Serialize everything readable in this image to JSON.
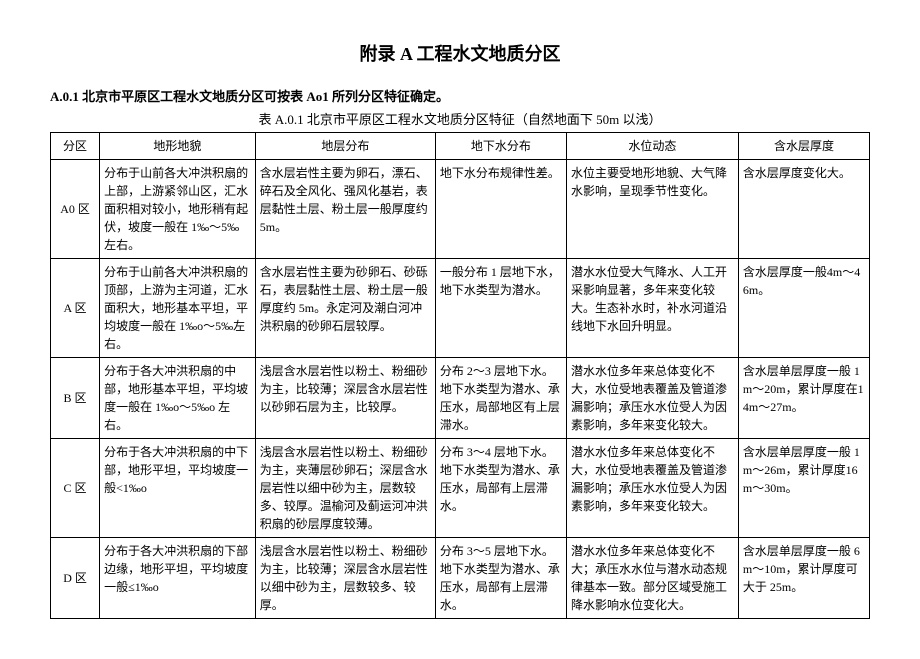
{
  "title": "附录 A 工程水文地质分区",
  "intro": "A.0.1 北京市平原区工程水文地质分区可按表 Ao1 所列分区特征确定。",
  "caption": "表 A.0.1 北京市平原区工程水文地质分区特征（自然地面下 50m 以浅）",
  "headers": {
    "zone": "分区",
    "landform": "地形地貌",
    "strata": "地层分布",
    "groundwater": "地下水分布",
    "waterlevel": "水位动态",
    "thickness": "含水层厚度"
  },
  "rows": [
    {
      "zone": "A0 区",
      "landform": "分布于山前各大冲洪积扇的上部，上游紧邻山区，汇水面积相对较小，地形稍有起伏，坡度一般在 1‰～5‰左右。",
      "strata": "含水层岩性主要为卵石，漂石、碎石及全风化、强风化基岩，表层黏性土层、粉土层一般厚度约 5m。",
      "groundwater": "地下水分布规律性差。",
      "waterlevel": "水位主要受地形地貌、大气降水影响，呈现季节性变化。",
      "thickness": "含水层厚度变化大。"
    },
    {
      "zone": "A 区",
      "landform": "分布于山前各大冲洪积扇的顶部，上游为主河道，汇水面积大，地形基本平坦，平均坡度一般在 1‰o～5‰左右。",
      "strata": "含水层岩性主要为砂卵石、砂砾石，表层黏性土层、粉土层一般厚度约 5m。永定河及潮白河冲洪积扇的砂卵石层较厚。",
      "groundwater": "一般分布 1 层地下水，地下水类型为潜水。",
      "waterlevel": "潜水水位受大气降水、人工开采影响显著，多年来变化较大。生态补水时，补水河道沿线地下水回升明显。",
      "thickness": "含水层厚度一般4m～46m。"
    },
    {
      "zone": "B 区",
      "landform": "分布于各大冲洪积扇的中部，地形基本平坦，平均坡度一般在 1‰o～5‰o 左右。",
      "strata": "浅层含水层岩性以粉土、粉细砂为主，比较薄；深层含水层岩性以砂卵石层为主，比较厚。",
      "groundwater": "分布 2～3 层地下水。地下水类型为潜水、承压水，局部地区有上层滞水。",
      "waterlevel": "潜水水位多年来总体变化不大，水位受地表覆盖及管道渗漏影响；承压水水位受人为因素影响，多年来变化较大。",
      "thickness": "含水层单层厚度一般 1m～20m，累计厚度在14m～27m。"
    },
    {
      "zone": "C 区",
      "landform": "分布于各大冲洪积扇的中下部，地形平坦，平均坡度一般<1‰o",
      "strata": "浅层含水层岩性以粉土、粉细砂为主，夹薄层砂卵石；深层含水层岩性以细中砂为主，层数较多、较厚。温榆河及蓟运河冲洪积扇的砂层厚度较薄。",
      "groundwater": "分布 3～4 层地下水。地下水类型为潜水、承压水，局部有上层滞水。",
      "waterlevel": "潜水水位多年来总体变化不大，水位受地表覆盖及管道渗漏影响；承压水水位受人为因素影响，多年来变化较大。",
      "thickness": "含水层单层厚度一般 1m～26m，累计厚度16m～30m。"
    },
    {
      "zone": "D 区",
      "landform": "分布于各大冲洪积扇的下部边缘，地形平坦，平均坡度一般≤1‰o",
      "strata": "浅层含水层岩性以粉土、粉细砂为主，比较薄；深层含水层岩性以细中砂为主，层数较多、较厚。",
      "groundwater": "分布 3～5 层地下水。地下水类型为潜水、承压水，局部有上层滞水。",
      "waterlevel": "潜水水位多年来总体变化不大；承压水水位与潜水动态规律基本一致。部分区域受施工降水影响水位变化大。",
      "thickness": "含水层单层厚度一般 6m～10m，累计厚度可大于 25m。"
    }
  ]
}
